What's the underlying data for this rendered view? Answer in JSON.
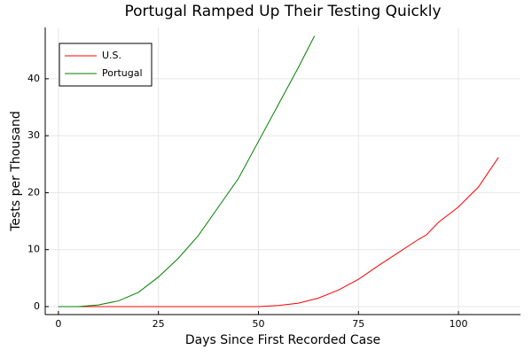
{
  "chart_data": {
    "type": "line",
    "title": "Portugal Ramped Up Their Testing Quickly",
    "xlabel": "Days Since First Recorded Case",
    "ylabel": "Tests per Thousand",
    "series": [
      {
        "name": "U.S.",
        "color": "#ff0000",
        "x": [
          0,
          10,
          20,
          30,
          40,
          50,
          55,
          60,
          65,
          70,
          75,
          80,
          85,
          90,
          92,
          95,
          100,
          105,
          110
        ],
        "values": [
          0,
          0,
          0,
          0,
          0,
          0,
          0.2,
          0.6,
          1.5,
          2.9,
          4.8,
          7.2,
          9.5,
          11.8,
          12.6,
          14.8,
          17.5,
          21,
          26.2
        ]
      },
      {
        "name": "Portugal",
        "color": "#008000",
        "x": [
          0,
          5,
          10,
          15,
          20,
          25,
          30,
          35,
          40,
          45,
          50,
          55,
          60,
          64
        ],
        "values": [
          0,
          0,
          0.3,
          1.0,
          2.5,
          5.2,
          8.5,
          12.5,
          17.5,
          22.5,
          29,
          35.5,
          42,
          47.5
        ]
      }
    ],
    "xlim": [
      -3.3,
      115.5
    ],
    "xticks": [
      0,
      25,
      50,
      75,
      100
    ],
    "ylim": [
      -1.4,
      49
    ],
    "yticks": [
      0,
      10,
      20,
      30,
      40
    ],
    "grid": true,
    "legend": "top-left"
  }
}
